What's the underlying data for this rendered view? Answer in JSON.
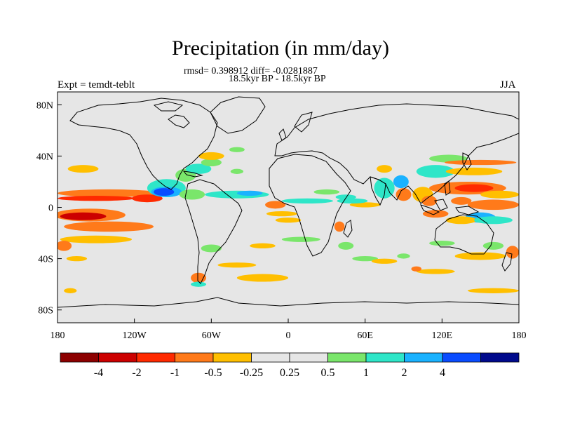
{
  "title": "Precipitation (in mm/day)",
  "stats_line": "rmsd= 0.398912 diff= -0.0281887",
  "period_line": "18.5kyr BP - 18.5kyr BP",
  "experiment_label": "Expt = temdt-teblt",
  "season_label": "JJA",
  "lat_ticks": [
    {
      "value": 80,
      "label": "80N"
    },
    {
      "value": 40,
      "label": "40N"
    },
    {
      "value": 0,
      "label": "0"
    },
    {
      "value": -40,
      "label": "40S"
    },
    {
      "value": -80,
      "label": "80S"
    }
  ],
  "lon_ticks": [
    {
      "value": -180,
      "label": "180"
    },
    {
      "value": -120,
      "label": "120W"
    },
    {
      "value": -60,
      "label": "60W"
    },
    {
      "value": 0,
      "label": "0"
    },
    {
      "value": 60,
      "label": "60E"
    },
    {
      "value": 120,
      "label": "120E"
    },
    {
      "value": 180,
      "label": "180"
    }
  ],
  "colorbar": {
    "colors": [
      "#8c0000",
      "#cc0000",
      "#ff2a00",
      "#ff7a1a",
      "#ffbf00",
      "#e6e6e6",
      "#e6e6e6",
      "#7ae66b",
      "#2ee6c8",
      "#1ab2ff",
      "#0a4cff",
      "#000a8c"
    ],
    "labels": [
      "-4",
      "-2",
      "-1",
      "-0.5",
      "-0.25",
      "0.25",
      "0.5",
      "1",
      "2",
      "4"
    ]
  },
  "chart_data": {
    "type": "heatmap",
    "title": "Precipitation (in mm/day)",
    "xlabel": "",
    "ylabel": "",
    "xlim": [
      -180,
      180
    ],
    "ylim": [
      -90,
      90
    ],
    "levels": [
      -4,
      -2,
      -1,
      -0.5,
      -0.25,
      0.25,
      0.5,
      1,
      2,
      4
    ],
    "blobs": [
      {
        "lon": -140,
        "lat": 11,
        "rx": 40,
        "ry": 3,
        "cls": 3
      },
      {
        "lon": -150,
        "lat": 7,
        "rx": 30,
        "ry": 2,
        "cls": 2
      },
      {
        "lon": -110,
        "lat": 7,
        "rx": 12,
        "ry": 3,
        "cls": 2
      },
      {
        "lon": -155,
        "lat": -6,
        "rx": 28,
        "ry": 5,
        "cls": 3
      },
      {
        "lon": -160,
        "lat": -7,
        "rx": 18,
        "ry": 3,
        "cls": 1
      },
      {
        "lon": -140,
        "lat": -15,
        "rx": 35,
        "ry": 4,
        "cls": 3
      },
      {
        "lon": -150,
        "lat": -25,
        "rx": 28,
        "ry": 3,
        "cls": 4
      },
      {
        "lon": -160,
        "lat": 30,
        "rx": 12,
        "ry": 3,
        "cls": 4
      },
      {
        "lon": -175,
        "lat": -30,
        "rx": 6,
        "ry": 4,
        "cls": 3
      },
      {
        "lon": -165,
        "lat": -40,
        "rx": 8,
        "ry": 2,
        "cls": 4
      },
      {
        "lon": -95,
        "lat": 15,
        "rx": 15,
        "ry": 7,
        "cls": 8
      },
      {
        "lon": -95,
        "lat": 12,
        "rx": 12,
        "ry": 4,
        "cls": 9
      },
      {
        "lon": -97,
        "lat": 12,
        "rx": 8,
        "ry": 3,
        "cls": 10
      },
      {
        "lon": -80,
        "lat": 25,
        "rx": 8,
        "ry": 5,
        "cls": 7
      },
      {
        "lon": -70,
        "lat": 30,
        "rx": 10,
        "ry": 4,
        "cls": 8
      },
      {
        "lon": -60,
        "lat": 35,
        "rx": 8,
        "ry": 3,
        "cls": 7
      },
      {
        "lon": -75,
        "lat": 10,
        "rx": 10,
        "ry": 4,
        "cls": 7
      },
      {
        "lon": -40,
        "lat": 10,
        "rx": 25,
        "ry": 3,
        "cls": 8
      },
      {
        "lon": -30,
        "lat": 11,
        "rx": 10,
        "ry": 2,
        "cls": 9
      },
      {
        "lon": -60,
        "lat": 40,
        "rx": 10,
        "ry": 3,
        "cls": 4
      },
      {
        "lon": -40,
        "lat": 45,
        "rx": 6,
        "ry": 2,
        "cls": 7
      },
      {
        "lon": -10,
        "lat": 2,
        "rx": 8,
        "ry": 3,
        "cls": 3
      },
      {
        "lon": -5,
        "lat": -5,
        "rx": 12,
        "ry": 2,
        "cls": 4
      },
      {
        "lon": 0,
        "lat": -10,
        "rx": 10,
        "ry": 2,
        "cls": 4
      },
      {
        "lon": 10,
        "lat": -25,
        "rx": 15,
        "ry": 2,
        "cls": 7
      },
      {
        "lon": -20,
        "lat": -30,
        "rx": 10,
        "ry": 2,
        "cls": 4
      },
      {
        "lon": -60,
        "lat": -32,
        "rx": 8,
        "ry": 3,
        "cls": 7
      },
      {
        "lon": -40,
        "lat": -45,
        "rx": 15,
        "ry": 2,
        "cls": 4
      },
      {
        "lon": -20,
        "lat": -55,
        "rx": 20,
        "ry": 3,
        "cls": 4
      },
      {
        "lon": -70,
        "lat": -55,
        "rx": 6,
        "ry": 4,
        "cls": 3
      },
      {
        "lon": -70,
        "lat": -60,
        "rx": 6,
        "ry": 2,
        "cls": 8
      },
      {
        "lon": -170,
        "lat": -65,
        "rx": 5,
        "ry": 2,
        "cls": 4
      },
      {
        "lon": -40,
        "lat": 28,
        "rx": 5,
        "ry": 2,
        "cls": 7
      },
      {
        "lon": 15,
        "lat": 5,
        "rx": 20,
        "ry": 2,
        "cls": 8
      },
      {
        "lon": 30,
        "lat": 12,
        "rx": 10,
        "ry": 2,
        "cls": 7
      },
      {
        "lon": 45,
        "lat": 8,
        "rx": 8,
        "ry": 2,
        "cls": 8
      },
      {
        "lon": 75,
        "lat": 15,
        "rx": 8,
        "ry": 8,
        "cls": 8
      },
      {
        "lon": 88,
        "lat": 20,
        "rx": 6,
        "ry": 5,
        "cls": 9
      },
      {
        "lon": 90,
        "lat": 10,
        "rx": 6,
        "ry": 5,
        "cls": 3
      },
      {
        "lon": 105,
        "lat": 10,
        "rx": 8,
        "ry": 6,
        "cls": 4
      },
      {
        "lon": 110,
        "lat": 5,
        "rx": 6,
        "ry": 4,
        "cls": 3
      },
      {
        "lon": 75,
        "lat": 30,
        "rx": 6,
        "ry": 3,
        "cls": 4
      },
      {
        "lon": 115,
        "lat": 28,
        "rx": 15,
        "ry": 5,
        "cls": 8
      },
      {
        "lon": 125,
        "lat": 38,
        "rx": 15,
        "ry": 3,
        "cls": 7
      },
      {
        "lon": 150,
        "lat": 35,
        "rx": 28,
        "ry": 2,
        "cls": 3
      },
      {
        "lon": 145,
        "lat": 28,
        "rx": 22,
        "ry": 3,
        "cls": 4
      },
      {
        "lon": 140,
        "lat": 15,
        "rx": 30,
        "ry": 5,
        "cls": 3
      },
      {
        "lon": 145,
        "lat": 15,
        "rx": 15,
        "ry": 3,
        "cls": 2
      },
      {
        "lon": 160,
        "lat": 2,
        "rx": 20,
        "ry": 4,
        "cls": 3
      },
      {
        "lon": 165,
        "lat": 10,
        "rx": 15,
        "ry": 3,
        "cls": 4
      },
      {
        "lon": 135,
        "lat": 5,
        "rx": 8,
        "ry": 3,
        "cls": 3
      },
      {
        "lon": 150,
        "lat": -8,
        "rx": 12,
        "ry": 4,
        "cls": 9
      },
      {
        "lon": 115,
        "lat": -5,
        "rx": 10,
        "ry": 3,
        "cls": 3
      },
      {
        "lon": 135,
        "lat": -10,
        "rx": 12,
        "ry": 3,
        "cls": 4
      },
      {
        "lon": 160,
        "lat": -10,
        "rx": 15,
        "ry": 3,
        "cls": 8
      },
      {
        "lon": 60,
        "lat": 2,
        "rx": 12,
        "ry": 2,
        "cls": 4
      },
      {
        "lon": 50,
        "lat": 5,
        "rx": 12,
        "ry": 2,
        "cls": 8
      },
      {
        "lon": 40,
        "lat": -15,
        "rx": 4,
        "ry": 4,
        "cls": 3
      },
      {
        "lon": 45,
        "lat": -30,
        "rx": 6,
        "ry": 3,
        "cls": 7
      },
      {
        "lon": 60,
        "lat": -40,
        "rx": 10,
        "ry": 2,
        "cls": 7
      },
      {
        "lon": 75,
        "lat": -42,
        "rx": 10,
        "ry": 2,
        "cls": 4
      },
      {
        "lon": 90,
        "lat": -38,
        "rx": 5,
        "ry": 2,
        "cls": 7
      },
      {
        "lon": 120,
        "lat": -28,
        "rx": 10,
        "ry": 2,
        "cls": 7
      },
      {
        "lon": 160,
        "lat": -30,
        "rx": 8,
        "ry": 3,
        "cls": 7
      },
      {
        "lon": 150,
        "lat": -38,
        "rx": 20,
        "ry": 3,
        "cls": 4
      },
      {
        "lon": 175,
        "lat": -35,
        "rx": 5,
        "ry": 5,
        "cls": 3
      },
      {
        "lon": 115,
        "lat": -50,
        "rx": 15,
        "ry": 2,
        "cls": 4
      },
      {
        "lon": 160,
        "lat": -65,
        "rx": 20,
        "ry": 2,
        "cls": 4
      },
      {
        "lon": 100,
        "lat": -48,
        "rx": 4,
        "ry": 2,
        "cls": 3
      }
    ]
  }
}
